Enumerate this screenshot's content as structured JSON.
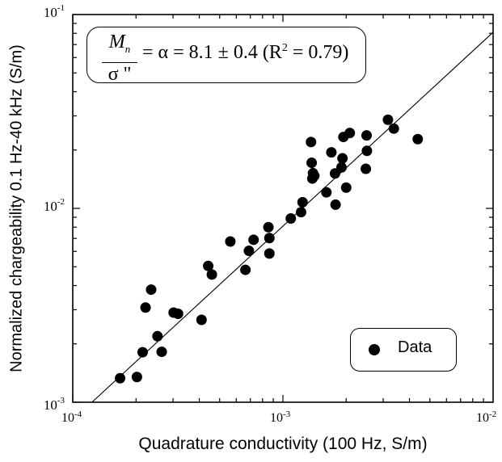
{
  "chart_data": {
    "type": "scatter",
    "xlabel": "Quadrature conductivity (100 Hz, S/m)",
    "ylabel": "Normalized chargeability 0.1 Hz-40 kHz (S/m)",
    "x_scale": "log",
    "y_scale": "log",
    "xlim": [
      0.0001,
      0.01
    ],
    "ylim": [
      0.001,
      0.1
    ],
    "x_ticks": [
      {
        "value": 0.0001,
        "base": "10",
        "exp": "-4"
      },
      {
        "value": 0.001,
        "base": "10",
        "exp": "-3"
      },
      {
        "value": 0.01,
        "base": "10",
        "exp": "-2"
      }
    ],
    "y_ticks": [
      {
        "value": 0.001,
        "base": "10",
        "exp": "-3"
      },
      {
        "value": 0.01,
        "base": "10",
        "exp": "-2"
      },
      {
        "value": 0.1,
        "base": "10",
        "exp": "-1"
      }
    ],
    "grid": false,
    "legend": {
      "position": "bottom-right",
      "entries": [
        "Data"
      ]
    },
    "annotation": {
      "numerator": "M",
      "numerator_sub": "n",
      "denominator": "σ \"",
      "rest": "= α = 8.1 ± 0.4 (R",
      "rest_sup": "2",
      "rest_end": " = 0.79)"
    },
    "fit_line": {
      "slope": 8.1,
      "x_range": [
        0.000123,
        0.01
      ]
    },
    "series": [
      {
        "name": "Data",
        "color": "#000000",
        "x": [
          0.000168,
          0.000202,
          0.000215,
          0.000222,
          0.000236,
          0.000253,
          0.000265,
          0.000302,
          0.000317,
          0.00041,
          0.000441,
          0.000459,
          0.000562,
          0.000663,
          0.000689,
          0.000725,
          0.000853,
          0.000862,
          0.000862,
          0.00109,
          0.00122,
          0.00124,
          0.00136,
          0.00137,
          0.00138,
          0.00139,
          0.00141,
          0.00161,
          0.0017,
          0.00177,
          0.00178,
          0.0019,
          0.00192,
          0.00194,
          0.002,
          0.00208,
          0.00248,
          0.0025,
          0.00251,
          0.00316,
          0.00337,
          0.00438
        ],
        "y": [
          0.00133,
          0.00135,
          0.00181,
          0.00308,
          0.00381,
          0.00219,
          0.00182,
          0.0029,
          0.00286,
          0.00266,
          0.00505,
          0.00456,
          0.00675,
          0.00482,
          0.00604,
          0.00689,
          0.008,
          0.00703,
          0.00585,
          0.00887,
          0.00956,
          0.01076,
          0.022,
          0.01719,
          0.01425,
          0.01519,
          0.01473,
          0.0121,
          0.01946,
          0.01514,
          0.01045,
          0.01627,
          0.01812,
          0.02336,
          0.0128,
          0.0245,
          0.016,
          0.02379,
          0.0198,
          0.02867,
          0.0258,
          0.02276
        ]
      }
    ]
  }
}
